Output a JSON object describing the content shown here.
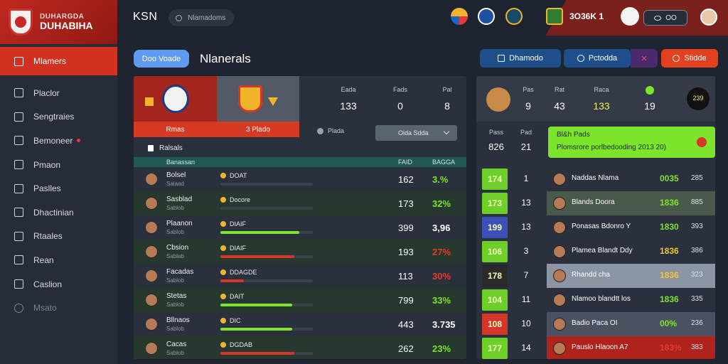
{
  "sidebar": {
    "brand_top": "DUHARGDA",
    "brand_main": "DUHABIHA",
    "items": [
      {
        "label": "Mlamers",
        "active": true
      },
      {
        "label": "Placlor"
      },
      {
        "label": "Sengtraies"
      },
      {
        "label": "Bemoneer"
      },
      {
        "label": "Pmaon"
      },
      {
        "label": "Paslles"
      },
      {
        "label": "Dhactinian"
      },
      {
        "label": "Rtaales"
      },
      {
        "label": "Rean"
      },
      {
        "label": "Caslion"
      },
      {
        "label": "Msato"
      }
    ]
  },
  "topbar": {
    "title": "KSN",
    "search_text": "Nlamadoms",
    "score": "3O36K  1",
    "pill_text": "OO"
  },
  "header": {
    "tab_label": "Doo Voade",
    "title": "Nlanerals",
    "buttons": [
      "Dhamodo",
      "Pctodda",
      "Stidde"
    ]
  },
  "left": {
    "team_a_label": "Rmas",
    "team_b_label": "3 Plado",
    "stats": [
      {
        "label": "Eada",
        "value": "133"
      },
      {
        "label": "Fads",
        "value": "0"
      },
      {
        "label": "Pal",
        "value": "8"
      }
    ],
    "players_chip": "Plada",
    "select_value": "Oida Sdda",
    "subheading": "Ralsals",
    "table_header": {
      "name": "Banassan",
      "c1": "FAID",
      "c2": "BAGGA"
    },
    "rows": [
      {
        "name": "Bolsel",
        "sub": "Salaad",
        "team": "DOAT",
        "fill": 0,
        "fill_color": "#5b6472",
        "value": "162",
        "pct": "3.%",
        "pct_color": "#7ce52b"
      },
      {
        "name": "Sasblad",
        "sub": "Sablob",
        "team": "Docore",
        "fill": 0,
        "fill_color": "#5b6472",
        "value": "173",
        "pct": "32%",
        "pct_color": "#7ce52b"
      },
      {
        "name": "Plaanon",
        "sub": "Sablob",
        "team": "DIAIF",
        "fill": 0.85,
        "fill_color": "#7ce52b",
        "value": "399",
        "pct": "3,96",
        "pct_color": "#ffffff"
      },
      {
        "name": "Cbsion",
        "sub": "Sablab",
        "team": "DIAIF",
        "fill": 0.8,
        "fill_color": "#d6352a",
        "value": "193",
        "pct": "27%",
        "pct_color": "#e53a2a"
      },
      {
        "name": "Facadas",
        "sub": "Sablob",
        "team": "DDAGDE",
        "fill": 0.25,
        "fill_color": "#d6352a",
        "value": "113",
        "pct": "30%",
        "pct_color": "#e53a2a"
      },
      {
        "name": "Stetas",
        "sub": "Sablob",
        "team": "DAIT",
        "fill": 0.78,
        "fill_color": "#7ce52b",
        "value": "799",
        "pct": "33%",
        "pct_color": "#7ce52b"
      },
      {
        "name": "Bllnaos",
        "sub": "Sablob",
        "team": "DIC",
        "fill": 0.78,
        "fill_color": "#7ce52b",
        "value": "443",
        "pct": "3.735",
        "pct_color": "#ffffff"
      },
      {
        "name": "Cacas",
        "sub": "Sablob",
        "team": "DGDAB",
        "fill": 0.8,
        "fill_color": "#d6352a",
        "value": "262",
        "pct": "23%",
        "pct_color": "#7ce52b"
      }
    ]
  },
  "right": {
    "stats": [
      {
        "label": "Pas",
        "value": "9"
      },
      {
        "label": "Rat",
        "value": "43"
      },
      {
        "label": "Raca",
        "value": "133"
      },
      {
        "label": "",
        "value": "19"
      },
      {
        "label": "",
        "value": "239"
      }
    ],
    "mini": [
      {
        "label": "Pass",
        "value": "826"
      },
      {
        "label": "Pad",
        "value": "21"
      }
    ],
    "alert_title": "Bl&h Pads",
    "alert_text": "Plomsrore porlbedooding 2013 20)",
    "rows": [
      {
        "box": "174",
        "box_bg": "#6fcf2a",
        "rank": "1",
        "name": "Naddas Nlama",
        "pct": "0035",
        "pct_color": "#7ce52b",
        "val": "285",
        "bar": "#2a313c"
      },
      {
        "box": "173",
        "box_bg": "#6fcf2a",
        "rank": "13",
        "name": "Blands Doora",
        "pct": "1836",
        "pct_color": "#7ce52b",
        "val": "885",
        "bar": "#4a5a4a"
      },
      {
        "box": "199",
        "box_bg": "#3d4fb8",
        "rank": "13",
        "name": "Ponasas Bdonro  Y",
        "pct": "1830",
        "pct_color": "#7ce52b",
        "val": "393",
        "bar": "#2a313c"
      },
      {
        "box": "106",
        "box_bg": "#6fcf2a",
        "rank": "3",
        "name": "Plamea Blandt Ddy",
        "pct": "1836",
        "pct_color": "#f5c43a",
        "val": "386",
        "bar": "#2a313c"
      },
      {
        "box": "178",
        "box_bg": "#2a2a2a",
        "rank": "7",
        "name": "Rhandd cha",
        "pct": "1836",
        "pct_color": "#f5c43a",
        "val": "323",
        "bar": "#8b95a3"
      },
      {
        "box": "104",
        "box_bg": "#6fcf2a",
        "rank": "11",
        "name": "Nlamoo blandtt los",
        "pct": "1836",
        "pct_color": "#7ce52b",
        "val": "335",
        "bar": "#2a313c"
      },
      {
        "box": "108",
        "box_bg": "#d6352a",
        "rank": "10",
        "name": "Badio Paca  OI",
        "pct": "00%",
        "pct_color": "#7ce52b",
        "val": "236",
        "bar": "#4a5160"
      },
      {
        "box": "177",
        "box_bg": "#6fcf2a",
        "rank": "14",
        "name": "Pauslo Hlaoon  A7",
        "pct": "183%",
        "pct_color": "#e53a2a",
        "val": "383",
        "bar": "#b0231c"
      }
    ]
  }
}
